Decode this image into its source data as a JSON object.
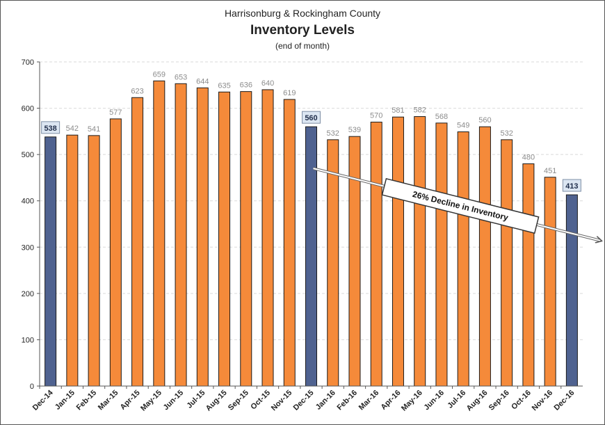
{
  "chart_data": {
    "type": "bar",
    "title": "Inventory Levels",
    "supertitle": "Harrisonburg & Rockingham County",
    "subtitle": "(end of month)",
    "xlabel": "",
    "ylabel": "",
    "ylim": [
      0,
      700
    ],
    "yticks": [
      0,
      100,
      200,
      300,
      400,
      500,
      600,
      700
    ],
    "grid": true,
    "categories": [
      "Dec-14",
      "Jan-15",
      "Feb-15",
      "Mar-15",
      "Apr-15",
      "May-15",
      "Jun-15",
      "Jul-15",
      "Aug-15",
      "Sep-15",
      "Oct-15",
      "Nov-15",
      "Dec-15",
      "Jan-16",
      "Feb-16",
      "Mar-16",
      "Apr-16",
      "May-16",
      "Jun-16",
      "Jul-16",
      "Aug-16",
      "Sep-16",
      "Oct-16",
      "Nov-16",
      "Dec-16"
    ],
    "values": [
      538,
      542,
      541,
      577,
      623,
      659,
      653,
      644,
      635,
      636,
      640,
      619,
      560,
      532,
      539,
      570,
      581,
      582,
      568,
      549,
      560,
      532,
      480,
      451,
      413
    ],
    "highlighted": [
      "Dec-14",
      "Dec-15",
      "Dec-16"
    ],
    "colors": {
      "bar": "#f58a3a",
      "highlight_bar": "#4f6290",
      "bar_outline": "#1a1a1a",
      "grid": "#d9d9d9",
      "highlight_label_bg": "#dce6f2"
    },
    "annotation": {
      "text": "26% Decline in Inventory",
      "from_category": "Dec-15",
      "to_category": "Dec-16"
    }
  }
}
